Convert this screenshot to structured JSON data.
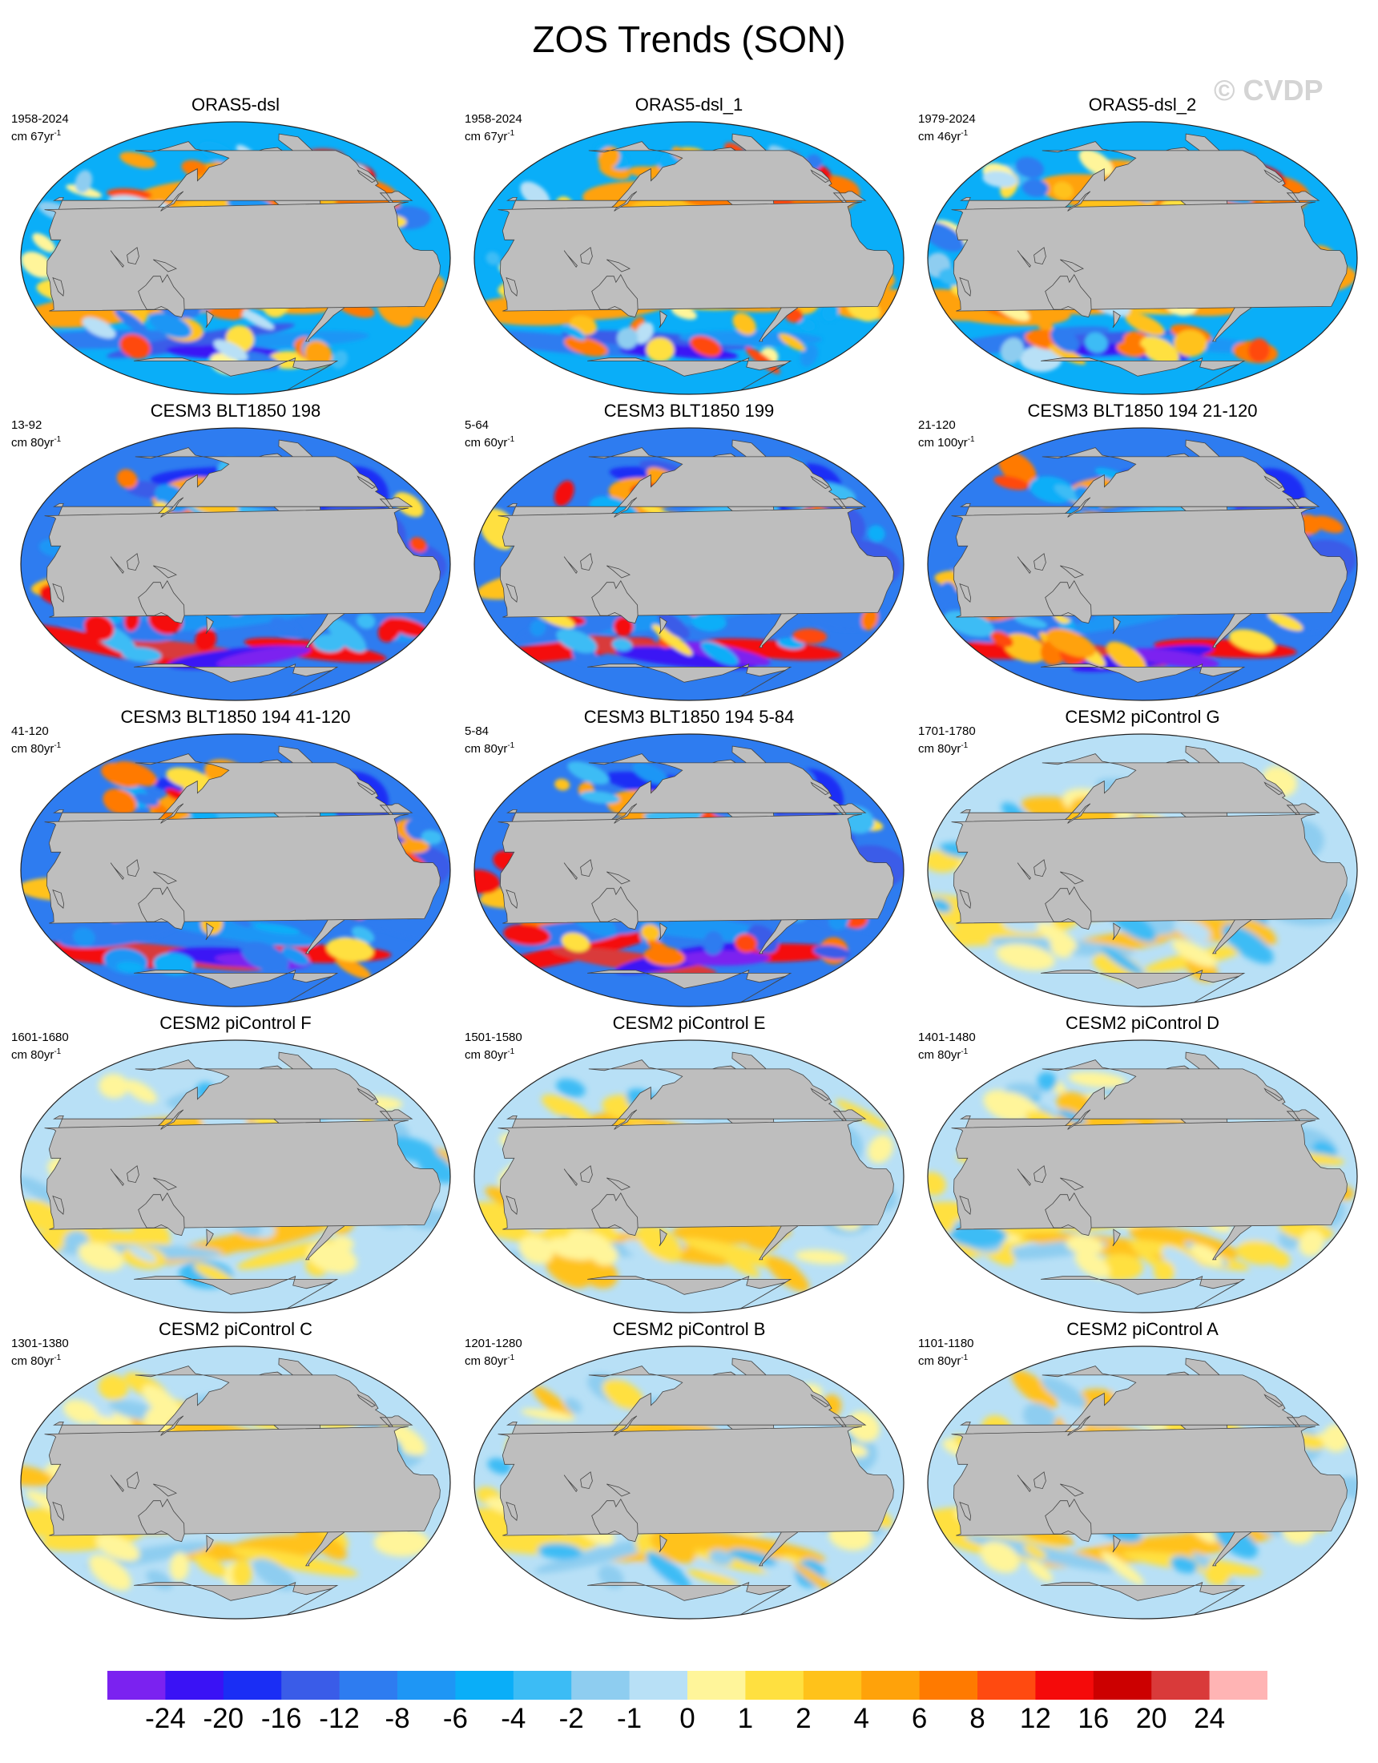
{
  "figure": {
    "title": "ZOS Trends (SON)",
    "watermark": "© CVDP"
  },
  "map_data": {
    "type": "map",
    "projection": "Robinson-style global, Pacific-centered",
    "land_color": "#bebebe",
    "panels": [
      {
        "title": "ORAS5-dsl",
        "years": "1958-2024",
        "units_prefix": "cm 67yr",
        "units_exp": "-1",
        "pattern": "obs"
      },
      {
        "title": "ORAS5-dsl_1",
        "years": "1958-2024",
        "units_prefix": "cm 67yr",
        "units_exp": "-1",
        "pattern": "obs"
      },
      {
        "title": "ORAS5-dsl_2",
        "years": "1979-2024",
        "units_prefix": "cm 46yr",
        "units_exp": "-1",
        "pattern": "obs"
      },
      {
        "title": "CESM3 BLT1850 198",
        "years": "13-92",
        "units_prefix": "cm 80yr",
        "units_exp": "-1",
        "pattern": "cesm3"
      },
      {
        "title": "CESM3 BLT1850 199",
        "years": "5-64",
        "units_prefix": "cm 60yr",
        "units_exp": "-1",
        "pattern": "cesm3"
      },
      {
        "title": "CESM3 BLT1850 194 21-120",
        "years": "21-120",
        "units_prefix": "cm 100yr",
        "units_exp": "-1",
        "pattern": "cesm3"
      },
      {
        "title": "CESM3 BLT1850 194 41-120",
        "years": "41-120",
        "units_prefix": "cm 80yr",
        "units_exp": "-1",
        "pattern": "cesm3"
      },
      {
        "title": "CESM3 BLT1850 194 5-84",
        "years": "5-84",
        "units_prefix": "cm 80yr",
        "units_exp": "-1",
        "pattern": "cesm3"
      },
      {
        "title": "CESM2 piControl G",
        "years": "1701-1780",
        "units_prefix": "cm 80yr",
        "units_exp": "-1",
        "pattern": "cesm2"
      },
      {
        "title": "CESM2 piControl F",
        "years": "1601-1680",
        "units_prefix": "cm 80yr",
        "units_exp": "-1",
        "pattern": "cesm2"
      },
      {
        "title": "CESM2 piControl E",
        "years": "1501-1580",
        "units_prefix": "cm 80yr",
        "units_exp": "-1",
        "pattern": "cesm2"
      },
      {
        "title": "CESM2 piControl D",
        "years": "1401-1480",
        "units_prefix": "cm 80yr",
        "units_exp": "-1",
        "pattern": "cesm2"
      },
      {
        "title": "CESM2 piControl C",
        "years": "1301-1380",
        "units_prefix": "cm 80yr",
        "units_exp": "-1",
        "pattern": "cesm2"
      },
      {
        "title": "CESM2 piControl B",
        "years": "1201-1280",
        "units_prefix": "cm 80yr",
        "units_exp": "-1",
        "pattern": "cesm2"
      },
      {
        "title": "CESM2 piControl A",
        "years": "1101-1180",
        "units_prefix": "cm 80yr",
        "units_exp": "-1",
        "pattern": "cesm2"
      }
    ]
  },
  "colorbar": {
    "labels": [
      "-24",
      "-20",
      "-16",
      "-12",
      "-8",
      "-6",
      "-4",
      "-2",
      "-1",
      "0",
      "1",
      "2",
      "4",
      "6",
      "8",
      "12",
      "16",
      "20",
      "24"
    ],
    "colors": [
      "#7b22f0",
      "#3a12f5",
      "#1a2ef5",
      "#3a5ce8",
      "#2e7cf0",
      "#1e96f5",
      "#0aaef8",
      "#3cbcf5",
      "#8ecdf0",
      "#b8e0f6",
      "#fff59a",
      "#ffe040",
      "#ffc21a",
      "#ffa20a",
      "#ff7a00",
      "#ff4a10",
      "#f50a0a",
      "#cc0000",
      "#d93a3a",
      "#ffb4b4"
    ]
  }
}
